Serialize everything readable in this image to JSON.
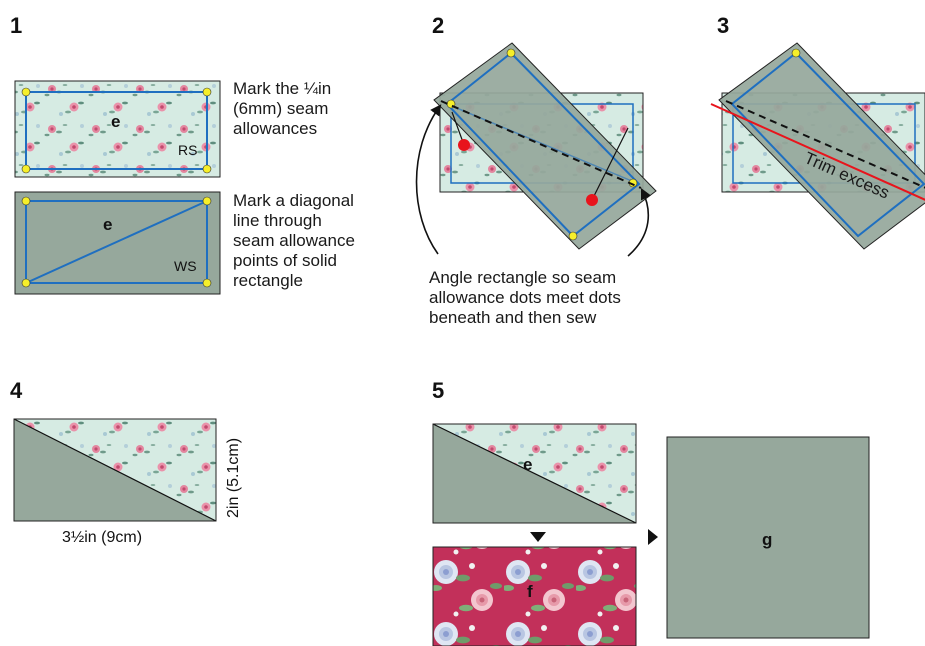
{
  "steps": {
    "s1": "1",
    "s2": "2",
    "s3": "3",
    "s4": "4",
    "s5": "5"
  },
  "step1": {
    "note1": [
      "Mark the ¼in",
      "(6mm) seam",
      "allowances"
    ],
    "note2": [
      "Mark a diagonal",
      "line through",
      "seam allowance",
      "points of  solid",
      "rectangle"
    ],
    "fabric_top": "e",
    "fabric_bottom": "e",
    "rs": "RS",
    "ws": "WS"
  },
  "step2": {
    "note": [
      "Angle rectangle so seam",
      "allowance dots meet dots",
      "beneath and then sew"
    ]
  },
  "step3": {
    "trim": "Trim excess"
  },
  "step4": {
    "width": "3½in (9cm)",
    "height": "2in (5.1cm)"
  },
  "step5": {
    "top_label": "e",
    "bottom_label": "f",
    "result_label": "g"
  },
  "colors": {
    "sage": "#96a89c",
    "mint": "#d6ebe3",
    "blue_line": "#1f6fc0",
    "red_line": "#e8141c",
    "dot_yellow": "#f6ef2a",
    "dot_red": "#e8141c",
    "floral_red": "#c2305a"
  }
}
